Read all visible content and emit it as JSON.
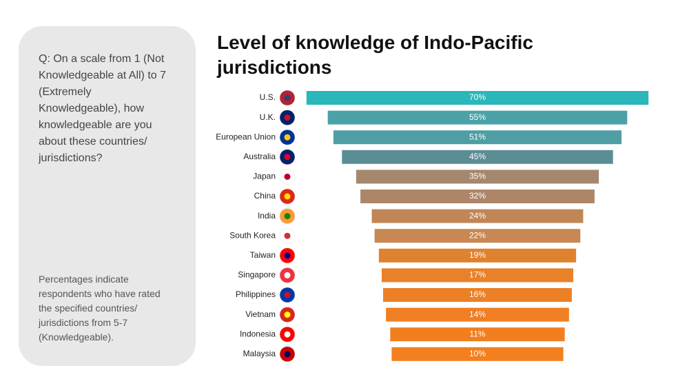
{
  "question": "Q: On a scale from 1 (Not Knowledgeable at All) to 7 (Extremely Knowledgeable), how knowledgeable are you about these countries/ jurisdictions?",
  "note": "Percentages indicate respondents who have rated the specified countries/ jurisdictions from 5-7 (Knowledgeable).",
  "chart_data": {
    "type": "funnel",
    "title": "Level of knowledge of Indo-Pacific jurisdictions",
    "categories": [
      "U.S.",
      "U.K.",
      "European Union",
      "Australia",
      "Japan",
      "China",
      "India",
      "South Korea",
      "Taiwan",
      "Singapore",
      "Philippines",
      "Vietnam",
      "Indonesia",
      "Malaysia"
    ],
    "values": [
      70,
      55,
      51,
      45,
      35,
      32,
      24,
      22,
      19,
      17,
      16,
      14,
      11,
      10
    ],
    "value_labels": [
      "70%",
      "55%",
      "51%",
      "45%",
      "35%",
      "32%",
      "24%",
      "22%",
      "19%",
      "17%",
      "16%",
      "14%",
      "11%",
      "10%"
    ],
    "colors": [
      "#2bb6b9",
      "#4aa2a7",
      "#4e9ea3",
      "#5b8d94",
      "#a5876d",
      "#ad866a",
      "#c18656",
      "#c78853",
      "#df822f",
      "#e98128",
      "#ec8025",
      "#ef7f22",
      "#f17f20",
      "#f37f1e"
    ]
  }
}
